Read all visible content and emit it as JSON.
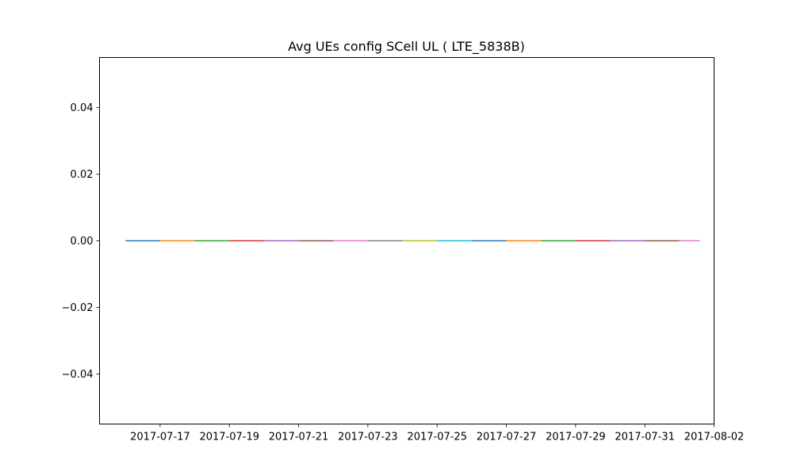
{
  "chart_data": {
    "type": "line",
    "title": "Avg UEs config SCell UL ( LTE_5838B)",
    "xlabel": "",
    "ylabel": "",
    "x_tick_labels": [
      "2017-07-17",
      "2017-07-19",
      "2017-07-21",
      "2017-07-23",
      "2017-07-25",
      "2017-07-27",
      "2017-07-29",
      "2017-07-31",
      "2017-08-02"
    ],
    "y_tick_labels": [
      "0.04",
      "0.02",
      "0.00",
      "−0.02",
      "−0.04"
    ],
    "y_ticks": [
      0.04,
      0.02,
      0.0,
      -0.02,
      -0.04
    ],
    "xlim": [
      "2017-07-15T06:00",
      "2017-08-02T00:00"
    ],
    "ylim": [
      -0.055,
      0.055
    ],
    "grid": false,
    "legend": "none",
    "series": [
      {
        "color": "#1f77b4",
        "x": [
          "2017-07-16",
          "2017-07-17"
        ],
        "y": [
          0,
          0
        ]
      },
      {
        "color": "#ff7f0e",
        "x": [
          "2017-07-17",
          "2017-07-18"
        ],
        "y": [
          0,
          0
        ]
      },
      {
        "color": "#2ca02c",
        "x": [
          "2017-07-18",
          "2017-07-19"
        ],
        "y": [
          0,
          0
        ]
      },
      {
        "color": "#d62728",
        "x": [
          "2017-07-19",
          "2017-07-20"
        ],
        "y": [
          0,
          0
        ]
      },
      {
        "color": "#9467bd",
        "x": [
          "2017-07-20",
          "2017-07-21"
        ],
        "y": [
          0,
          0
        ]
      },
      {
        "color": "#8c564b",
        "x": [
          "2017-07-21",
          "2017-07-22"
        ],
        "y": [
          0,
          0
        ]
      },
      {
        "color": "#e377c2",
        "x": [
          "2017-07-22",
          "2017-07-23"
        ],
        "y": [
          0,
          0
        ]
      },
      {
        "color": "#7f7f7f",
        "x": [
          "2017-07-23",
          "2017-07-24"
        ],
        "y": [
          0,
          0
        ]
      },
      {
        "color": "#bcbd22",
        "x": [
          "2017-07-24",
          "2017-07-25"
        ],
        "y": [
          0,
          0
        ]
      },
      {
        "color": "#17becf",
        "x": [
          "2017-07-25",
          "2017-07-26"
        ],
        "y": [
          0,
          0
        ]
      },
      {
        "color": "#1f77b4",
        "x": [
          "2017-07-26",
          "2017-07-27"
        ],
        "y": [
          0,
          0
        ]
      },
      {
        "color": "#ff7f0e",
        "x": [
          "2017-07-27",
          "2017-07-28"
        ],
        "y": [
          0,
          0
        ]
      },
      {
        "color": "#2ca02c",
        "x": [
          "2017-07-28",
          "2017-07-29"
        ],
        "y": [
          0,
          0
        ]
      },
      {
        "color": "#d62728",
        "x": [
          "2017-07-29",
          "2017-07-30"
        ],
        "y": [
          0,
          0
        ]
      },
      {
        "color": "#9467bd",
        "x": [
          "2017-07-30",
          "2017-07-31"
        ],
        "y": [
          0,
          0
        ]
      },
      {
        "color": "#8c564b",
        "x": [
          "2017-07-31",
          "2017-08-01"
        ],
        "y": [
          0,
          0
        ]
      },
      {
        "color": "#e377c2",
        "x": [
          "2017-08-01",
          "2017-08-01T14:00"
        ],
        "y": [
          0,
          0
        ]
      }
    ]
  }
}
